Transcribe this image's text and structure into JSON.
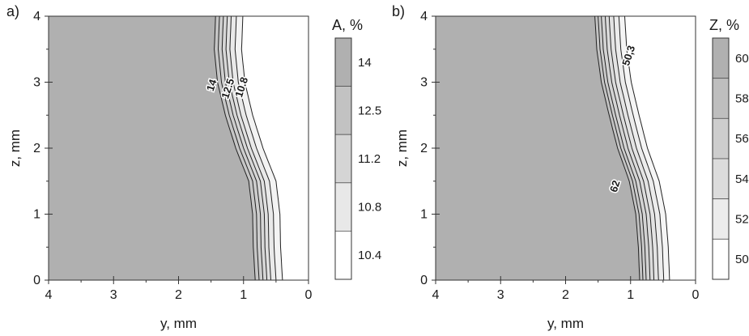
{
  "colors": {
    "fill_min": "#ffffff",
    "fill_max": "#b0b0b0",
    "contour": "#222222"
  },
  "chart_data": [
    {
      "type": "heatmap",
      "panel_label": "a)",
      "xlabel": "y, mm",
      "ylabel": "z, mm",
      "xlim": [
        4,
        0
      ],
      "ylim": [
        0,
        4
      ],
      "x_ticks": [
        "4",
        "3",
        "2",
        "1",
        "0"
      ],
      "y_ticks": [
        "0",
        "1",
        "2",
        "3",
        "4"
      ],
      "colorbar": {
        "title": "A, %",
        "tick_labels": [
          "14",
          "12.5",
          "11.2",
          "10.8",
          "10.4"
        ]
      },
      "contour_labels": [
        {
          "text": "14",
          "y": 1.48,
          "z": 2.95
        },
        {
          "text": "12.5",
          "y": 1.23,
          "z": 2.9
        },
        {
          "text": "10.8",
          "y": 1.02,
          "z": 2.92
        }
      ],
      "boundary": [
        {
          "z": 4.0,
          "y": 1.43
        },
        {
          "z": 3.5,
          "y": 1.45
        },
        {
          "z": 3.0,
          "y": 1.4
        },
        {
          "z": 2.5,
          "y": 1.28
        },
        {
          "z": 2.0,
          "y": 1.12
        },
        {
          "z": 1.5,
          "y": 0.92
        },
        {
          "z": 1.0,
          "y": 0.86
        },
        {
          "z": 0.5,
          "y": 0.85
        },
        {
          "z": 0.0,
          "y": 0.82
        }
      ],
      "contour_offsets_mm": [
        0,
        0.06,
        0.12,
        0.18,
        0.24,
        0.32,
        0.42
      ]
    },
    {
      "type": "heatmap",
      "panel_label": "b)",
      "xlabel": "y, mm",
      "ylabel": "z, mm",
      "xlim": [
        4,
        0
      ],
      "ylim": [
        0,
        4
      ],
      "x_ticks": [
        "4",
        "3",
        "2",
        "1",
        "0"
      ],
      "y_ticks": [
        "0",
        "1",
        "2",
        "3",
        "4"
      ],
      "colorbar": {
        "title": "Z, %",
        "tick_labels": [
          "60",
          "58",
          "56",
          "54",
          "52",
          "50"
        ]
      },
      "contour_labels": [
        {
          "text": "50,3",
          "y": 1.02,
          "z": 3.4
        },
        {
          "text": "62",
          "y": 1.23,
          "z": 1.42
        }
      ],
      "boundary": [
        {
          "z": 4.0,
          "y": 1.55
        },
        {
          "z": 3.5,
          "y": 1.52
        },
        {
          "z": 3.0,
          "y": 1.45
        },
        {
          "z": 2.5,
          "y": 1.33
        },
        {
          "z": 2.0,
          "y": 1.2
        },
        {
          "z": 1.5,
          "y": 1.02
        },
        {
          "z": 1.0,
          "y": 0.92
        },
        {
          "z": 0.5,
          "y": 0.88
        },
        {
          "z": 0.0,
          "y": 0.86
        }
      ],
      "contour_offsets_mm": [
        0,
        0.05,
        0.1,
        0.16,
        0.22,
        0.29,
        0.37,
        0.46
      ]
    }
  ]
}
